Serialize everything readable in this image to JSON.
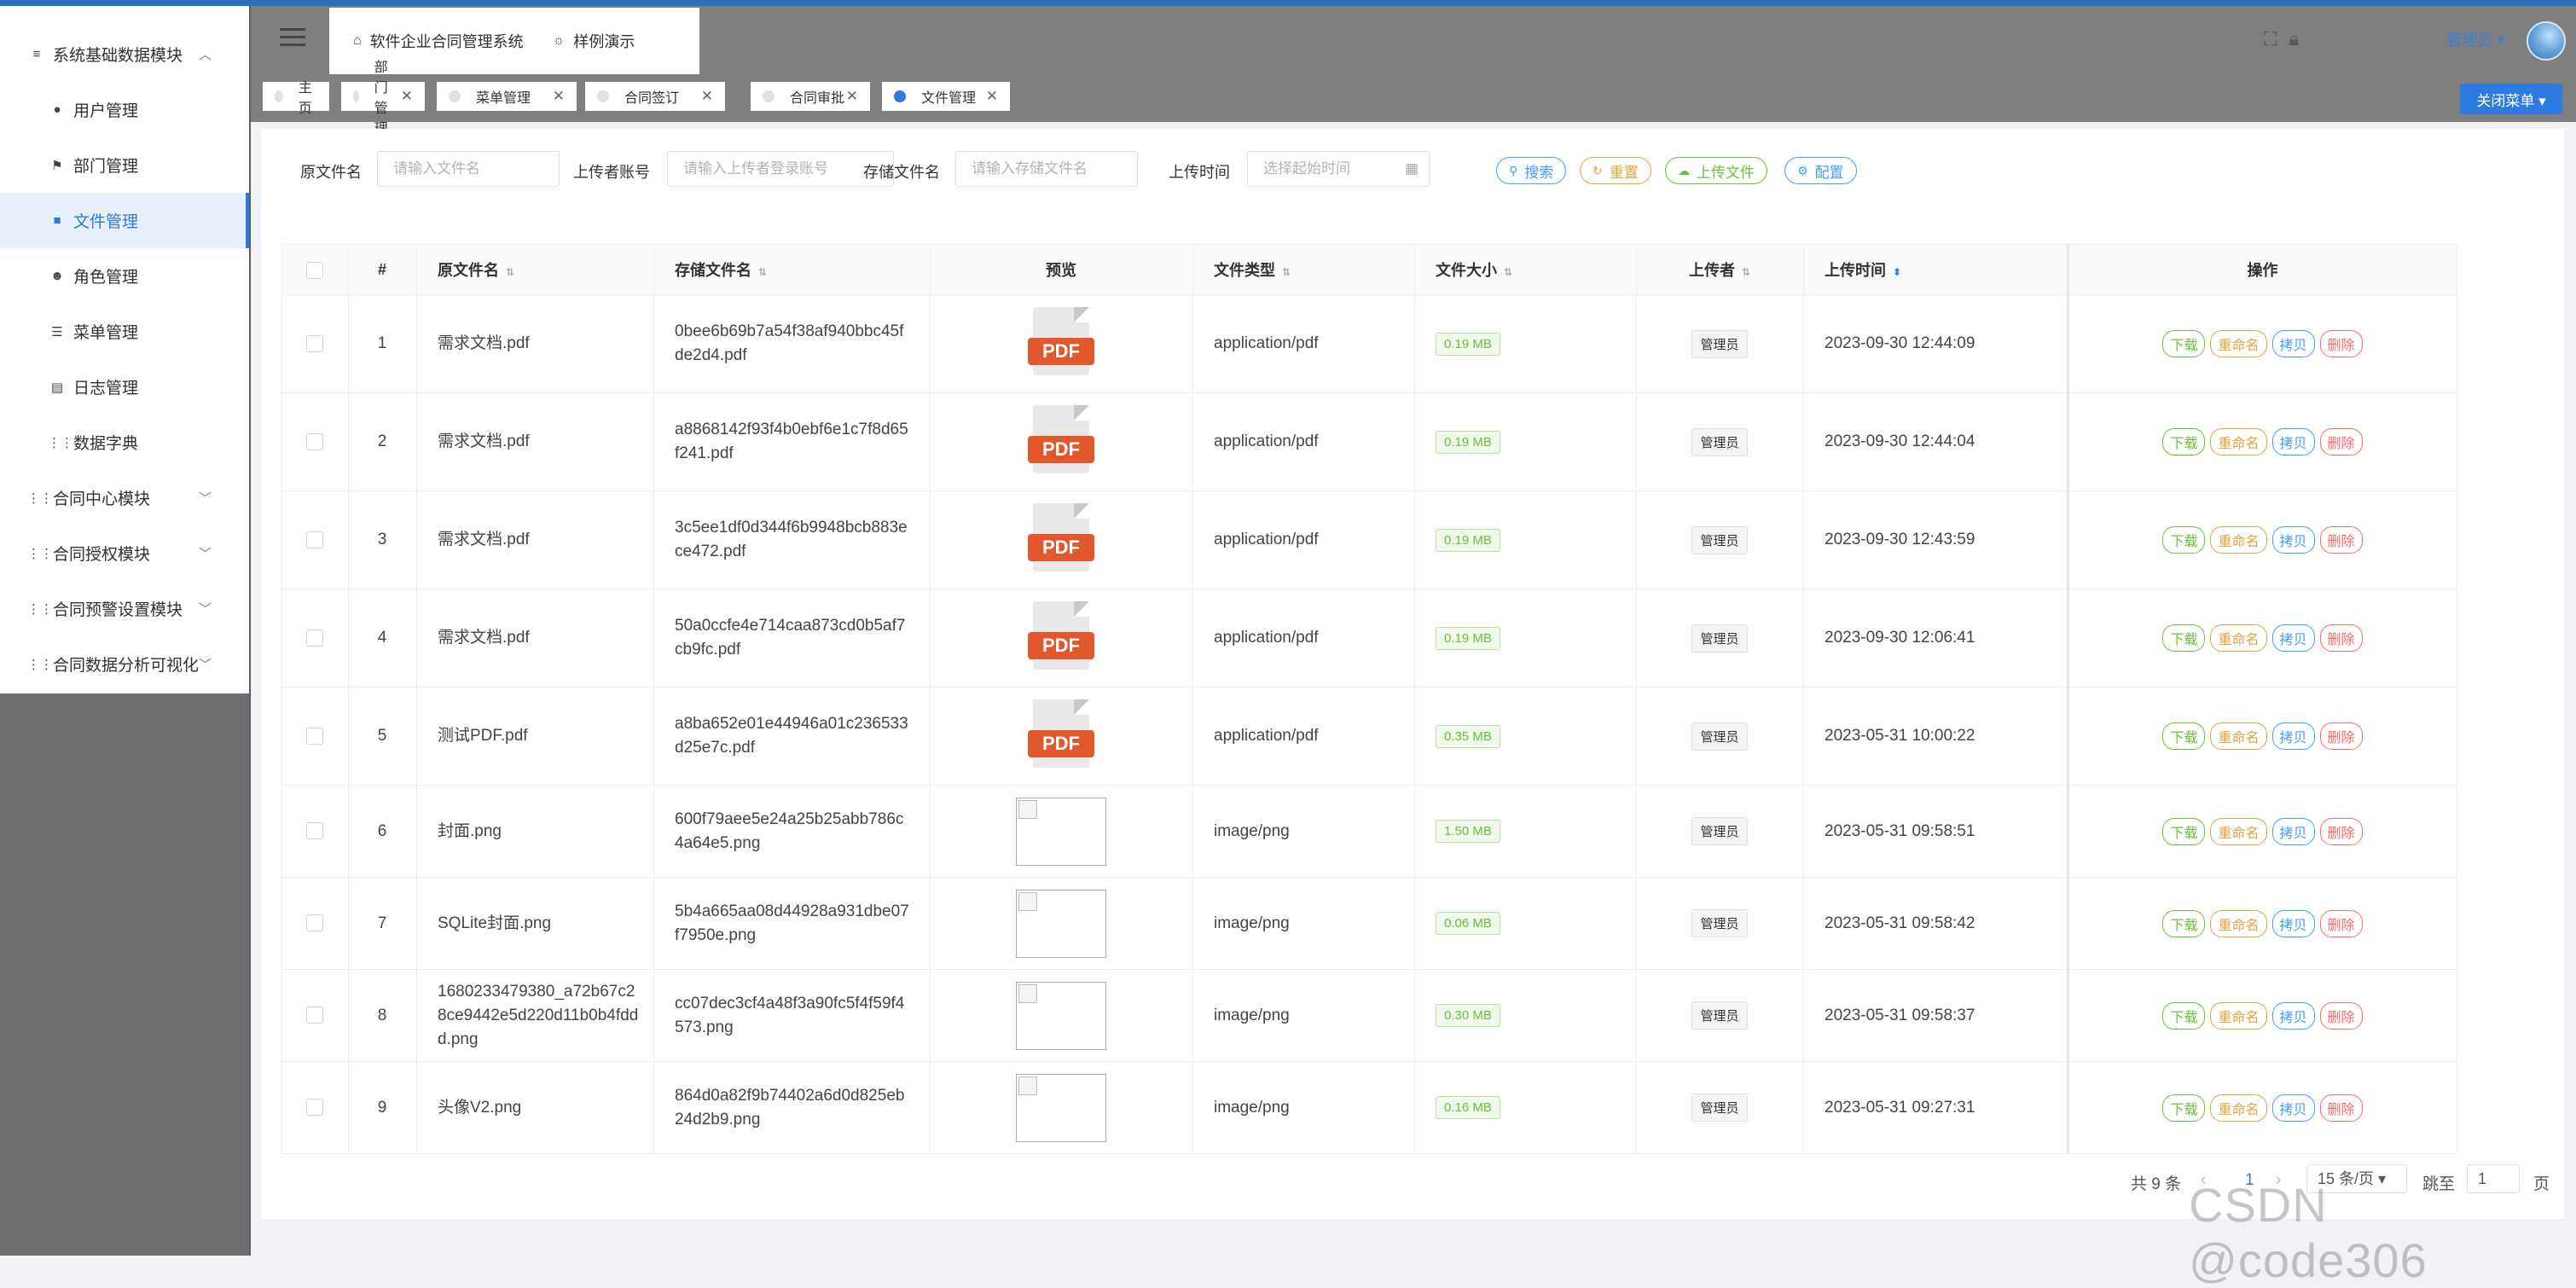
{
  "sidebar": {
    "items": [
      {
        "label": "系统基础数据模块",
        "type": "top",
        "icon": "≡",
        "chevron": "︿",
        "icon_name": "data-icon"
      },
      {
        "label": "用户管理",
        "type": "sub",
        "icon": "●",
        "icon_name": "user-icon"
      },
      {
        "label": "部门管理",
        "type": "sub",
        "icon": "⚑",
        "icon_name": "flag-icon"
      },
      {
        "label": "文件管理",
        "type": "sub",
        "icon": "■",
        "icon_name": "folder-icon",
        "active": true
      },
      {
        "label": "角色管理",
        "type": "sub",
        "icon": "☻",
        "icon_name": "role-icon"
      },
      {
        "label": "菜单管理",
        "type": "sub",
        "icon": "☰",
        "icon_name": "menu-icon"
      },
      {
        "label": "日志管理",
        "type": "sub",
        "icon": "▤",
        "icon_name": "log-icon"
      },
      {
        "label": "数据字典",
        "type": "sub",
        "icon": "⋮⋮",
        "icon_name": "grid-icon"
      },
      {
        "label": "合同中心模块",
        "type": "top",
        "icon": "⋮⋮",
        "chevron": "﹀",
        "icon_name": "grid-icon"
      },
      {
        "label": "合同授权模块",
        "type": "top",
        "icon": "⋮⋮",
        "chevron": "﹀",
        "icon_name": "grid-icon"
      },
      {
        "label": "合同预警设置模块",
        "type": "top",
        "icon": "⋮⋮",
        "chevron": "﹀",
        "icon_name": "grid-icon"
      },
      {
        "label": "合同数据分析可视化",
        "type": "top",
        "icon": "⋮⋮",
        "chevron": "﹀",
        "icon_name": "grid-icon"
      }
    ]
  },
  "header": {
    "breadcrumb": [
      {
        "icon": "⌂",
        "label": "软件企业合同管理系统"
      },
      {
        "icon": "☼",
        "label": "样例演示"
      }
    ],
    "user_label": "管理员 ▾"
  },
  "tabs": [
    {
      "label": "主页",
      "closable": false
    },
    {
      "label": "部门管理",
      "closable": true
    },
    {
      "label": "菜单管理",
      "closable": true
    },
    {
      "label": "合同签订",
      "closable": true
    },
    {
      "label": "合同审批",
      "closable": true
    },
    {
      "label": "文件管理",
      "closable": true,
      "active": true
    }
  ],
  "close_menu_label": "关闭菜单 ▾",
  "filters": {
    "orig_name_label": "原文件名",
    "orig_name_placeholder": "请输入文件名",
    "uploader_label": "上传者账号",
    "uploader_placeholder": "请输入上传者登录账号",
    "store_name_label": "存储文件名",
    "store_name_placeholder": "请输入存储文件名",
    "upload_time_label": "上传时间",
    "upload_time_placeholder": "选择起始时间"
  },
  "buttons": {
    "search": "搜索",
    "reset": "重置",
    "upload": "上传文件",
    "config": "配置"
  },
  "table": {
    "headers": {
      "index": "#",
      "orig": "原文件名",
      "store": "存储文件名",
      "preview": "预览",
      "type": "文件类型",
      "size": "文件大小",
      "uploader": "上传者",
      "time": "上传时间",
      "ops": "操作"
    },
    "op_labels": {
      "download": "下载",
      "rename": "重命名",
      "copy": "拷贝",
      "delete": "删除"
    },
    "rows": [
      {
        "index": "1",
        "orig": "需求文档.pdf",
        "store": "0bee6b69b7a54f38af940bbc45fde2d4.pdf",
        "preview": "pdf",
        "type": "application/pdf",
        "size": "0.19 MB",
        "uploader": "管理员",
        "time": "2023-09-30 12:44:09"
      },
      {
        "index": "2",
        "orig": "需求文档.pdf",
        "store": "a8868142f93f4b0ebf6e1c7f8d65f241.pdf",
        "preview": "pdf",
        "type": "application/pdf",
        "size": "0.19 MB",
        "uploader": "管理员",
        "time": "2023-09-30 12:44:04"
      },
      {
        "index": "3",
        "orig": "需求文档.pdf",
        "store": "3c5ee1df0d344f6b9948bcb883ece472.pdf",
        "preview": "pdf",
        "type": "application/pdf",
        "size": "0.19 MB",
        "uploader": "管理员",
        "time": "2023-09-30 12:43:59"
      },
      {
        "index": "4",
        "orig": "需求文档.pdf",
        "store": "50a0ccfe4e714caa873cd0b5af7cb9fc.pdf",
        "preview": "pdf",
        "type": "application/pdf",
        "size": "0.19 MB",
        "uploader": "管理员",
        "time": "2023-09-30 12:06:41"
      },
      {
        "index": "5",
        "orig": "测试PDF.pdf",
        "store": "a8ba652e01e44946a01c236533d25e7c.pdf",
        "preview": "pdf",
        "type": "application/pdf",
        "size": "0.35 MB",
        "uploader": "管理员",
        "time": "2023-05-31 10:00:22"
      },
      {
        "index": "6",
        "orig": "封面.png",
        "store": "600f79aee5e24a25b25abb786c4a64e5.png",
        "preview": "img",
        "type": "image/png",
        "size": "1.50 MB",
        "uploader": "管理员",
        "time": "2023-05-31 09:58:51"
      },
      {
        "index": "7",
        "orig": "SQLite封面.png",
        "store": "5b4a665aa08d44928a931dbe07f7950e.png",
        "preview": "img",
        "type": "image/png",
        "size": "0.06 MB",
        "uploader": "管理员",
        "time": "2023-05-31 09:58:42"
      },
      {
        "index": "8",
        "orig": "1680233479380_a72b67c28ce9442e5d220d11b0b4fddd.png",
        "store": "cc07dec3cf4a48f3a90fc5f4f59f4573.png",
        "preview": "img",
        "type": "image/png",
        "size": "0.30 MB",
        "uploader": "管理员",
        "time": "2023-05-31 09:58:37"
      },
      {
        "index": "9",
        "orig": "头像V2.png",
        "store": "864d0a82f9b74402a6d0d825eb24d2b9.png",
        "preview": "img",
        "type": "image/png",
        "size": "0.16 MB",
        "uploader": "管理员",
        "time": "2023-05-31 09:27:31"
      }
    ]
  },
  "pager": {
    "total": "共 9 条",
    "current_page": "1",
    "page_size": "15 条/页 ▾",
    "goto_label": "跳至",
    "goto_value": "1",
    "page_suffix": "页"
  },
  "watermark": "CSDN @code306",
  "colors": {
    "primary": "#2d7be0",
    "success": "#67c23a",
    "warning": "#e6a23c",
    "info": "#409eff",
    "danger": "#f56c6c"
  }
}
